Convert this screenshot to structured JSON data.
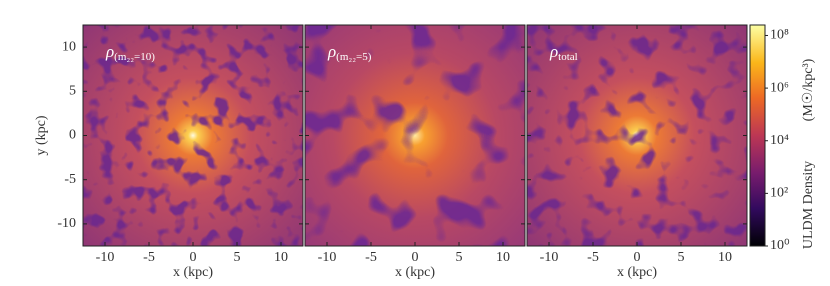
{
  "chart_data": {
    "type": "heatmap",
    "panels": [
      {
        "symbol": "ρ",
        "subscript": "(m₂₂=10)"
      },
      {
        "symbol": "ρ",
        "subscript": "(m₂₂=5)"
      },
      {
        "symbol": "ρ",
        "subscript": "total"
      }
    ],
    "xlabel": "x (kpc)",
    "ylabel": "y (kpc)",
    "xlim": [
      -12.5,
      12.5
    ],
    "ylim": [
      -12.5,
      12.5
    ],
    "xticks": [
      -10,
      -5,
      0,
      5,
      10
    ],
    "yticks": [
      -10,
      -5,
      0,
      5,
      10
    ],
    "colorbar": {
      "label": "ULDM Density",
      "unit": "(M☉/kpc³)",
      "log": true,
      "clim": [
        1,
        250000000
      ],
      "ticks": [
        {
          "value": 1,
          "label": "10⁰"
        },
        {
          "value": 100,
          "label": "10²"
        },
        {
          "value": 10000,
          "label": "10⁴"
        },
        {
          "value": 1000000,
          "label": "10⁶"
        },
        {
          "value": 100000000,
          "label": "10⁸"
        }
      ],
      "colormap": "inferno"
    }
  }
}
